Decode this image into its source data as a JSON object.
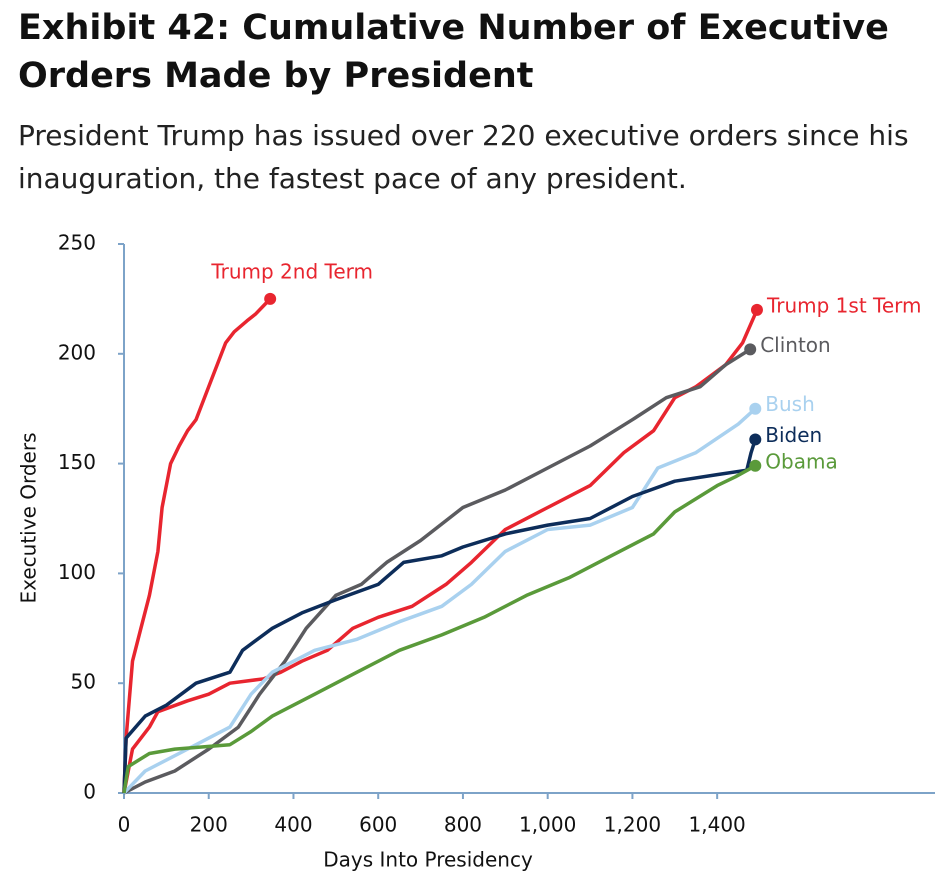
{
  "chart_data": {
    "type": "line",
    "title": "Exhibit 42: Cumulative Number of Executive Orders Made by President",
    "subtitle": "President Trump has issued over 220 executive orders since his inauguration, the fastest pace of any president.",
    "x_label": "Days Into Presidency",
    "y_label": "Executive Orders",
    "xlim": [
      0,
      1900
    ],
    "xticks": [
      0,
      200,
      400,
      600,
      800,
      {
        "value": 1000,
        "label": "1,000"
      },
      {
        "value": 1200,
        "label": "1,200"
      },
      {
        "value": 1400,
        "label": "1,400"
      }
    ],
    "ylim": [
      0,
      250
    ],
    "yticks": [
      0,
      50,
      100,
      150,
      200,
      250
    ],
    "grid": false,
    "series": [
      {
        "name": "Trump 2nd Term",
        "color": "#e8252f",
        "x": [
          0,
          5,
          20,
          40,
          60,
          80,
          90,
          110,
          130,
          150,
          170,
          200,
          220,
          240,
          260,
          290,
          310,
          330,
          345
        ],
        "values": [
          0,
          25,
          60,
          75,
          90,
          110,
          130,
          150,
          158,
          165,
          170,
          185,
          195,
          205,
          210,
          215,
          218,
          222,
          225
        ]
      },
      {
        "name": "Trump 1st Term",
        "color": "#e8252f",
        "x": [
          0,
          20,
          60,
          80,
          150,
          200,
          250,
          330,
          370,
          420,
          480,
          540,
          600,
          680,
          760,
          820,
          900,
          1000,
          1100,
          1180,
          1250,
          1300,
          1350,
          1420,
          1460,
          1494
        ],
        "values": [
          0,
          20,
          30,
          37,
          42,
          45,
          50,
          52,
          55,
          60,
          65,
          75,
          80,
          85,
          95,
          105,
          120,
          130,
          140,
          155,
          165,
          180,
          185,
          195,
          205,
          220
        ]
      },
      {
        "name": "Clinton",
        "color": "#5b5b5f",
        "x": [
          0,
          50,
          120,
          200,
          270,
          320,
          380,
          430,
          500,
          560,
          620,
          700,
          800,
          900,
          1000,
          1100,
          1200,
          1280,
          1360,
          1420,
          1478
        ],
        "values": [
          0,
          5,
          10,
          20,
          30,
          45,
          60,
          75,
          90,
          95,
          105,
          115,
          130,
          138,
          148,
          158,
          170,
          180,
          185,
          195,
          202
        ]
      },
      {
        "name": "Bush",
        "color": "#a9d1ef",
        "x": [
          0,
          50,
          150,
          250,
          300,
          350,
          450,
          550,
          650,
          750,
          820,
          900,
          1000,
          1100,
          1200,
          1260,
          1350,
          1450,
          1490
        ],
        "values": [
          0,
          10,
          20,
          30,
          45,
          55,
          65,
          70,
          78,
          85,
          95,
          110,
          120,
          122,
          130,
          148,
          155,
          168,
          175
        ]
      },
      {
        "name": "Biden",
        "color": "#0d2d5a",
        "x": [
          0,
          5,
          50,
          100,
          170,
          250,
          280,
          350,
          420,
          500,
          600,
          660,
          750,
          800,
          900,
          1000,
          1100,
          1200,
          1300,
          1400,
          1470,
          1480,
          1490
        ],
        "values": [
          0,
          25,
          35,
          40,
          50,
          55,
          65,
          75,
          82,
          88,
          95,
          105,
          108,
          112,
          118,
          122,
          125,
          135,
          142,
          145,
          147,
          155,
          161
        ]
      },
      {
        "name": "Obama",
        "color": "#5a9a3a",
        "x": [
          0,
          10,
          60,
          120,
          250,
          300,
          350,
          450,
          550,
          650,
          750,
          850,
          950,
          1050,
          1150,
          1250,
          1300,
          1400,
          1443,
          1490
        ],
        "values": [
          0,
          12,
          18,
          20,
          22,
          28,
          35,
          45,
          55,
          65,
          72,
          80,
          90,
          98,
          108,
          118,
          128,
          140,
          144,
          149
        ]
      }
    ]
  }
}
